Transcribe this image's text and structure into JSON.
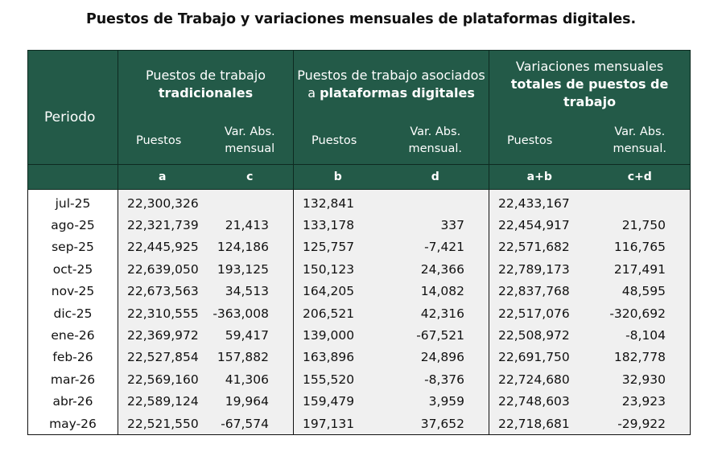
{
  "title": "Puestos de Trabajo y variaciones mensuales de plataformas digitales.",
  "table": {
    "period_header": "Periodo",
    "groups": [
      {
        "pre": "Puestos de trabajo",
        "bold": "tradicionales",
        "post": ""
      },
      {
        "pre": "Puestos de trabajo asociados a",
        "bold": "plataformas digitales",
        "post": ""
      },
      {
        "pre": "Variaciones mensuales",
        "bold": "totales de puestos de trabajo",
        "post": ""
      }
    ],
    "subheaders": {
      "a_label": "Puestos",
      "c_label_1": "Var. Abs.",
      "c_label_2": "mensual",
      "b_label": "Puestos",
      "d_label_1": "Var. Abs.",
      "d_label_2": "mensual.",
      "ab_label": "Puestos",
      "cd_label_1": "Var. Abs.",
      "cd_label_2": "mensual."
    },
    "letters": [
      "a",
      "c",
      "b",
      "d",
      "a+b",
      "c+d"
    ],
    "rows": [
      {
        "period": "jul-25",
        "a": "22,300,326",
        "c": "",
        "b": "132,841",
        "d": "",
        "ab": "22,433,167",
        "cd": ""
      },
      {
        "period": "ago-25",
        "a": "22,321,739",
        "c": "21,413",
        "b": "133,178",
        "d": "337",
        "ab": "22,454,917",
        "cd": "21,750"
      },
      {
        "period": "sep-25",
        "a": "22,445,925",
        "c": "124,186",
        "b": "125,757",
        "d": "-7,421",
        "ab": "22,571,682",
        "cd": "116,765"
      },
      {
        "period": "oct-25",
        "a": "22,639,050",
        "c": "193,125",
        "b": "150,123",
        "d": "24,366",
        "ab": "22,789,173",
        "cd": "217,491"
      },
      {
        "period": "nov-25",
        "a": "22,673,563",
        "c": "34,513",
        "b": "164,205",
        "d": "14,082",
        "ab": "22,837,768",
        "cd": "48,595"
      },
      {
        "period": "dic-25",
        "a": "22,310,555",
        "c": "-363,008",
        "b": "206,521",
        "d": "42,316",
        "ab": "22,517,076",
        "cd": "-320,692"
      },
      {
        "period": "ene-26",
        "a": "22,369,972",
        "c": "59,417",
        "b": "139,000",
        "d": "-67,521",
        "ab": "22,508,972",
        "cd": "-8,104"
      },
      {
        "period": "feb-26",
        "a": "22,527,854",
        "c": "157,882",
        "b": "163,896",
        "d": "24,896",
        "ab": "22,691,750",
        "cd": "182,778"
      },
      {
        "period": "mar-26",
        "a": "22,569,160",
        "c": "41,306",
        "b": "155,520",
        "d": "-8,376",
        "ab": "22,724,680",
        "cd": "32,930"
      },
      {
        "period": "abr-26",
        "a": "22,589,124",
        "c": "19,964",
        "b": "159,479",
        "d": "3,959",
        "ab": "22,748,603",
        "cd": "23,923"
      },
      {
        "period": "may-26",
        "a": "22,521,550",
        "c": "-67,574",
        "b": "197,131",
        "d": "37,652",
        "ab": "22,718,681",
        "cd": "-29,922"
      }
    ]
  },
  "colors": {
    "header_bg": "#235a48",
    "header_text": "#ffffff",
    "cell_bg": "#f0f0f0"
  }
}
